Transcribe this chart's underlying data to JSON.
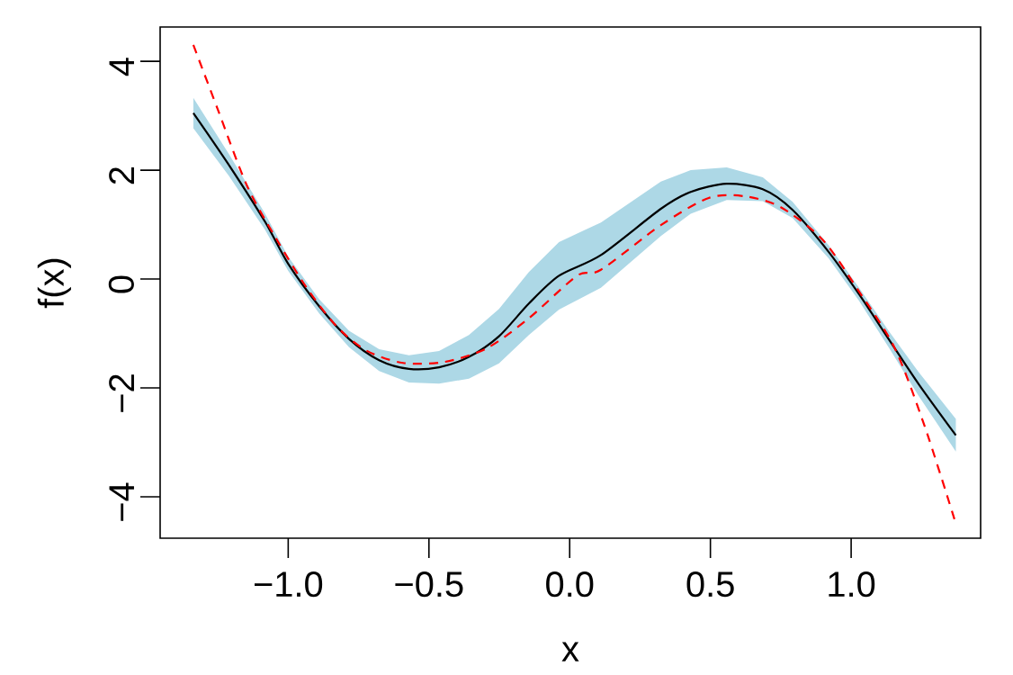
{
  "chart_data": {
    "type": "line",
    "xlabel": "x",
    "ylabel": "f(x)",
    "xlim": [
      -1.455,
      1.46
    ],
    "ylim": [
      -4.76,
      4.63
    ],
    "xticks": [
      {
        "value": -1,
        "label": "−1.0"
      },
      {
        "value": -0.5,
        "label": "−0.5"
      },
      {
        "value": 0,
        "label": "0.0"
      },
      {
        "value": 0.5,
        "label": "0.5"
      },
      {
        "value": 1,
        "label": "1.0"
      }
    ],
    "yticks": [
      {
        "value": -4,
        "label": "−4"
      },
      {
        "value": -2,
        "label": "−2"
      },
      0,
      2,
      4
    ],
    "grid": false,
    "marker": "none",
    "series": [
      {
        "color": "#000000",
        "line_style": "solid",
        "x": [
          -1.337,
          -1.21,
          -1.082,
          -1.0,
          -0.89,
          -0.784,
          -0.677,
          -0.571,
          -0.464,
          -0.358,
          -0.251,
          -0.145,
          -0.038,
          0.111,
          0.324,
          0.43,
          0.558,
          0.686,
          0.792,
          0.92,
          1.027,
          1.133,
          1.24,
          1.372
        ],
        "values": [
          3.05,
          2.09,
          1.05,
          0.28,
          -0.5,
          -1.1,
          -1.49,
          -1.65,
          -1.62,
          -1.43,
          -1.05,
          -0.45,
          0.06,
          0.44,
          1.29,
          1.6,
          1.75,
          1.65,
          1.27,
          0.5,
          -0.27,
          -1.1,
          -1.93,
          -2.87
        ],
        "lower": [
          2.77,
          1.89,
          0.9,
          0.15,
          -0.63,
          -1.25,
          -1.69,
          -1.9,
          -1.92,
          -1.83,
          -1.55,
          -1.03,
          -0.56,
          -0.16,
          0.79,
          1.2,
          1.45,
          1.43,
          1.12,
          0.38,
          -0.39,
          -1.25,
          -2.15,
          -3.17
        ],
        "upper": [
          3.33,
          2.29,
          1.2,
          0.41,
          -0.37,
          -0.95,
          -1.29,
          -1.4,
          -1.32,
          -1.03,
          -0.55,
          0.13,
          0.68,
          1.04,
          1.79,
          2.0,
          2.05,
          1.87,
          1.42,
          0.62,
          -0.15,
          -0.95,
          -1.71,
          -2.57
        ]
      },
      {
        "color": "#ff0000",
        "line_style": "dashed",
        "x": [
          -1.337,
          -1.252,
          -1.146,
          -1.04,
          -0.933,
          -0.826,
          -0.72,
          -0.592,
          -0.443,
          -0.294,
          -0.145,
          0.026,
          0.111,
          0.324,
          0.494,
          0.622,
          0.75,
          0.899,
          1.027,
          1.155,
          1.261,
          1.367
        ],
        "values": [
          4.3,
          3.14,
          1.71,
          0.72,
          -0.17,
          -0.88,
          -1.32,
          -1.54,
          -1.52,
          -1.27,
          -0.72,
          0.06,
          0.17,
          0.99,
          1.49,
          1.52,
          1.32,
          0.72,
          -0.22,
          -1.27,
          -2.7,
          -4.41
        ]
      }
    ]
  }
}
